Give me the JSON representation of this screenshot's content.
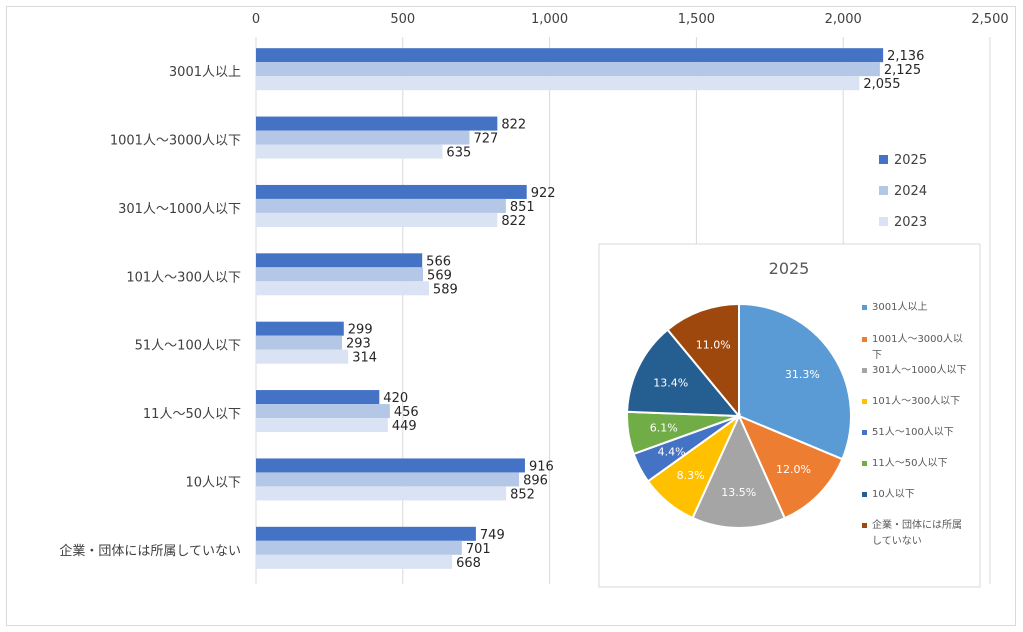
{
  "chart_data": [
    {
      "type": "bar",
      "orientation": "horizontal",
      "categories": [
        "3001人以上",
        "1001人～3000人以下",
        "301人～1000人以下",
        "101人～300人以下",
        "51人～100人以下",
        "11人～50人以下",
        "10人以下",
        "企業・団体には所属していない"
      ],
      "series": [
        {
          "name": "2025",
          "color": "#4472c4",
          "values": [
            2136,
            822,
            922,
            566,
            299,
            420,
            916,
            749
          ]
        },
        {
          "name": "2024",
          "color": "#b4c7e7",
          "values": [
            2125,
            727,
            851,
            569,
            293,
            456,
            896,
            701
          ]
        },
        {
          "name": "2023",
          "color": "#dae3f3",
          "values": [
            2055,
            635,
            822,
            589,
            314,
            449,
            852,
            668
          ]
        }
      ],
      "xlim": [
        0,
        2500
      ],
      "xticks": [
        0,
        500,
        1000,
        1500,
        2000,
        2500
      ],
      "xtick_labels": [
        "0",
        "500",
        "1,000",
        "1,500",
        "2,000",
        "2,500"
      ],
      "value_labels": [
        [
          "2,136",
          "822",
          "922",
          "566",
          "299",
          "420",
          "916",
          "749"
        ],
        [
          "2,125",
          "727",
          "851",
          "569",
          "293",
          "456",
          "896",
          "701"
        ],
        [
          "2,055",
          "635",
          "822",
          "589",
          "314",
          "449",
          "852",
          "668"
        ]
      ],
      "legend": "right",
      "grid": true
    },
    {
      "type": "pie",
      "title": "2025",
      "labels": [
        "3001人以上",
        "1001人～3000人以下",
        "301人～1000人以下",
        "101人～300人以下",
        "51人～100人以下",
        "11人～50人以下",
        "10人以下",
        "企業・団体には所属していない"
      ],
      "values": [
        31.3,
        12.0,
        13.5,
        8.3,
        4.4,
        6.1,
        13.4,
        11.0
      ],
      "value_labels": [
        "31.3%",
        "12.0%",
        "13.5%",
        "8.3%",
        "4.4%",
        "6.1%",
        "13.4%",
        "11.0%"
      ],
      "colors": [
        "#5b9bd5",
        "#ed7d31",
        "#a5a5a5",
        "#ffc000",
        "#4472c4",
        "#70ad47",
        "#255e91",
        "#9e480e"
      ],
      "legend_lines": [
        [
          "3001人以上"
        ],
        [
          "1001人～3000人以",
          "下"
        ],
        [
          "301人～1000人以下"
        ],
        [
          "101人～300人以下"
        ],
        [
          "51人～100人以下"
        ],
        [
          "11人～50人以下"
        ],
        [
          "10人以下"
        ],
        [
          "企業・団体には所属",
          "していない"
        ]
      ],
      "legend": "right"
    }
  ]
}
